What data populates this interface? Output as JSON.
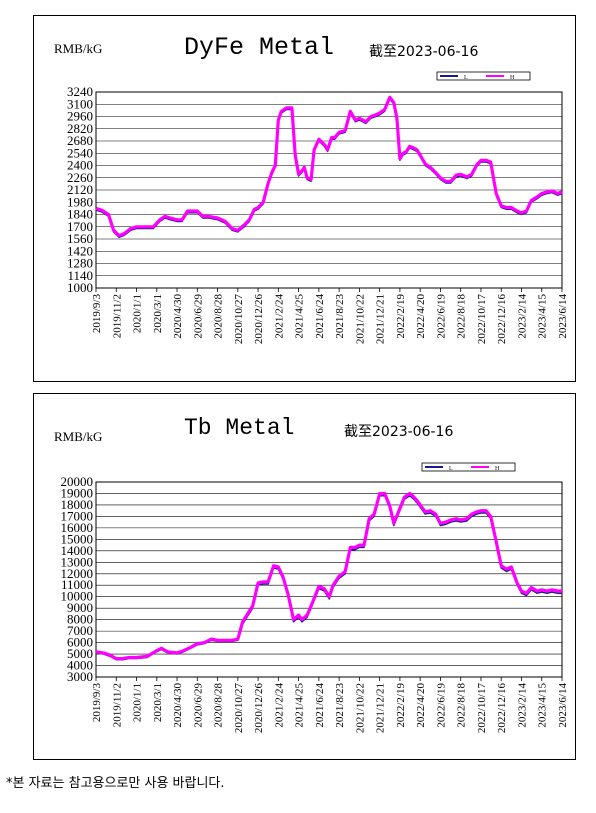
{
  "footnote": "*본 자료는 참고용으로만 사용 바랍니다.",
  "charts": [
    {
      "unit_label": "RMB/kG",
      "title": "DyFe Metal",
      "date_note": "截至2023-06-16",
      "legend": [
        "L",
        "H"
      ],
      "colors": {
        "L": "#1a1a8c",
        "H": "#ff00ff"
      },
      "chart_data": {
        "type": "line",
        "title": "DyFe Metal",
        "ylabel": "RMB/kG",
        "ylim": [
          1000,
          3240
        ],
        "yticks": [
          1000,
          1140,
          1280,
          1420,
          1560,
          1700,
          1840,
          1980,
          2120,
          2260,
          2400,
          2540,
          2680,
          2820,
          2960,
          3100,
          3240
        ],
        "ytick_labels": [
          "1000",
          "1140",
          "1280",
          "1420",
          "1560",
          "1700",
          "1840",
          "1980",
          "2120",
          "2260",
          "2400",
          "2540",
          "2680",
          "2820",
          "2960",
          "3100",
          "3240"
        ],
        "xticks": [
          "2019/9/3",
          "2019/11/2",
          "2020/1/1",
          "2020/3/1",
          "2020/4/30",
          "2020/6/29",
          "2020/8/28",
          "2020/10/27",
          "2020/12/26",
          "2021/2/24",
          "2021/4/25",
          "2021/6/24",
          "2021/8/23",
          "2021/10/22",
          "2021/12/21",
          "2022/2/19",
          "2022/4/20",
          "2022/6/19",
          "2022/8/18",
          "2022/10/17",
          "2022/12/16",
          "2023/2/14",
          "2023/4/15",
          "2023/6/14"
        ],
        "x": [
          "2019/9/3",
          "2019/9/20",
          "2019/10/10",
          "2019/10/25",
          "2019/11/10",
          "2019/11/25",
          "2019/12/15",
          "2020/1/1",
          "2020/2/1",
          "2020/2/20",
          "2020/3/10",
          "2020/3/25",
          "2020/4/10",
          "2020/4/30",
          "2020/5/15",
          "2020/5/31",
          "2020/6/15",
          "2020/6/29",
          "2020/7/15",
          "2020/8/1",
          "2020/8/28",
          "2020/9/20",
          "2020/10/10",
          "2020/10/27",
          "2020/11/15",
          "2020/11/30",
          "2020/12/15",
          "2020/12/26",
          "2021/1/10",
          "2021/1/25",
          "2021/2/5",
          "2021/2/15",
          "2021/2/24",
          "2021/3/5",
          "2021/3/20",
          "2021/4/5",
          "2021/4/15",
          "2021/4/25",
          "2021/5/5",
          "2021/5/12",
          "2021/5/20",
          "2021/6/1",
          "2021/6/10",
          "2021/6/24",
          "2021/7/10",
          "2021/7/20",
          "2021/8/1",
          "2021/8/10",
          "2021/8/23",
          "2021/9/10",
          "2021/9/25",
          "2021/10/10",
          "2021/10/22",
          "2021/11/1",
          "2021/11/10",
          "2021/11/25",
          "2021/12/10",
          "2021/12/21",
          "2022/1/5",
          "2022/1/20",
          "2022/2/1",
          "2022/2/10",
          "2022/2/19",
          "2022/3/1",
          "2022/3/10",
          "2022/3/20",
          "2022/4/1",
          "2022/4/10",
          "2022/4/20",
          "2022/5/5",
          "2022/5/20",
          "2022/6/5",
          "2022/6/19",
          "2022/7/5",
          "2022/7/20",
          "2022/8/5",
          "2022/8/18",
          "2022/9/5",
          "2022/9/20",
          "2022/10/5",
          "2022/10/17",
          "2022/11/1",
          "2022/11/15",
          "2022/12/1",
          "2022/12/16",
          "2023/1/1",
          "2023/1/15",
          "2023/2/1",
          "2023/2/14",
          "2023/3/1",
          "2023/3/15",
          "2023/4/1",
          "2023/4/15",
          "2023/5/1",
          "2023/5/15",
          "2023/6/1",
          "2023/6/14"
        ],
        "series": [
          {
            "name": "L",
            "values": [
              1890,
              1870,
              1820,
              1640,
              1580,
              1600,
              1660,
              1680,
              1680,
              1680,
              1760,
              1800,
              1780,
              1760,
              1760,
              1860,
              1860,
              1860,
              1800,
              1800,
              1780,
              1740,
              1660,
              1640,
              1700,
              1760,
              1880,
              1900,
              1960,
              2180,
              2300,
              2380,
              2900,
              3000,
              3040,
              3040,
              2500,
              2280,
              2320,
              2360,
              2240,
              2220,
              2560,
              2680,
              2620,
              2560,
              2700,
              2700,
              2760,
              2780,
              3000,
              2900,
              2920,
              2900,
              2880,
              2940,
              2960,
              2980,
              3020,
              3160,
              3100,
              2920,
              2460,
              2520,
              2540,
              2600,
              2580,
              2560,
              2500,
              2400,
              2360,
              2300,
              2240,
              2200,
              2200,
              2270,
              2280,
              2250,
              2280,
              2390,
              2440,
              2440,
              2420,
              2060,
              1920,
              1900,
              1900,
              1860,
              1840,
              1860,
              1980,
              2020,
              2060,
              2080,
              2090,
              2060,
              2080
            ]
          },
          {
            "name": "H",
            "values": [
              1910,
              1890,
              1840,
              1660,
              1600,
              1620,
              1680,
              1700,
              1700,
              1700,
              1780,
              1820,
              1800,
              1780,
              1780,
              1880,
              1880,
              1880,
              1820,
              1820,
              1800,
              1760,
              1680,
              1660,
              1720,
              1780,
              1900,
              1920,
              1980,
              2200,
              2320,
              2400,
              2920,
              3020,
              3060,
              3060,
              2520,
              2300,
              2340,
              2380,
              2260,
              2240,
              2580,
              2700,
              2640,
              2580,
              2720,
              2720,
              2780,
              2800,
              3020,
              2920,
              2940,
              2920,
              2900,
              2960,
              2980,
              3000,
              3040,
              3180,
              3120,
              2940,
              2480,
              2540,
              2560,
              2620,
              2600,
              2580,
              2520,
              2420,
              2380,
              2320,
              2260,
              2220,
              2220,
              2290,
              2300,
              2270,
              2300,
              2410,
              2460,
              2460,
              2440,
              2080,
              1940,
              1920,
              1920,
              1880,
              1860,
              1880,
              2000,
              2040,
              2080,
              2100,
              2110,
              2080,
              2100
            ]
          }
        ]
      }
    },
    {
      "unit_label": "RMB/kG",
      "title": "Tb Metal",
      "date_note": "截至2023-06-16",
      "legend": [
        "L",
        "H"
      ],
      "colors": {
        "L": "#1a1a8c",
        "H": "#ff00ff"
      },
      "chart_data": {
        "type": "line",
        "title": "Tb Metal",
        "ylabel": "RMB/kG",
        "ylim": [
          3000,
          20000
        ],
        "yticks": [
          3000,
          4000,
          5000,
          6000,
          7000,
          8000,
          9000,
          10000,
          11000,
          12000,
          13000,
          14000,
          15000,
          16000,
          17000,
          18000,
          19000,
          20000
        ],
        "ytick_labels": [
          "3000",
          "4000",
          "5000",
          "6000",
          "7000",
          "8000",
          "9000",
          "10000",
          "11000",
          "12000",
          "13000",
          "14000",
          "15000",
          "16000",
          "17000",
          "18000",
          "19000",
          "20000"
        ],
        "xticks": [
          "2019/9/3",
          "2019/11/2",
          "2020/1/1",
          "2020/3/1",
          "2020/4/30",
          "2020/6/29",
          "2020/8/28",
          "2020/10/27",
          "2020/12/26",
          "2021/2/24",
          "2021/4/25",
          "2021/6/24",
          "2021/8/23",
          "2021/10/22",
          "2021/12/21",
          "2022/2/19",
          "2022/4/20",
          "2022/6/19",
          "2022/8/18",
          "2022/10/17",
          "2022/12/16",
          "2023/2/14",
          "2023/4/15",
          "2023/6/14"
        ],
        "x": [
          "2019/9/3",
          "2019/9/25",
          "2019/10/15",
          "2019/11/2",
          "2019/11/20",
          "2019/12/10",
          "2020/1/1",
          "2020/2/1",
          "2020/3/1",
          "2020/3/15",
          "2020/4/1",
          "2020/4/30",
          "2020/5/20",
          "2020/6/10",
          "2020/6/29",
          "2020/7/20",
          "2020/8/10",
          "2020/8/28",
          "2020/9/20",
          "2020/10/10",
          "2020/10/27",
          "2020/11/10",
          "2020/11/25",
          "2020/12/10",
          "2020/12/26",
          "2021/1/10",
          "2021/1/25",
          "2021/2/10",
          "2021/2/24",
          "2021/3/10",
          "2021/3/25",
          "2021/4/10",
          "2021/4/25",
          "2021/5/5",
          "2021/5/20",
          "2021/6/1",
          "2021/6/24",
          "2021/7/10",
          "2021/7/25",
          "2021/8/5",
          "2021/8/23",
          "2021/9/10",
          "2021/9/25",
          "2021/10/10",
          "2021/10/22",
          "2021/11/5",
          "2021/11/20",
          "2021/12/5",
          "2021/12/21",
          "2022/1/5",
          "2022/1/20",
          "2022/2/1",
          "2022/2/19",
          "2022/3/5",
          "2022/3/20",
          "2022/4/1",
          "2022/4/10",
          "2022/4/20",
          "2022/5/5",
          "2022/5/20",
          "2022/6/5",
          "2022/6/19",
          "2022/7/5",
          "2022/7/20",
          "2022/8/5",
          "2022/8/18",
          "2022/9/5",
          "2022/9/20",
          "2022/10/5",
          "2022/10/17",
          "2022/11/1",
          "2022/11/15",
          "2022/12/1",
          "2022/12/16",
          "2023/1/1",
          "2023/1/15",
          "2023/2/1",
          "2023/2/14",
          "2023/3/1",
          "2023/3/15",
          "2023/4/1",
          "2023/4/15",
          "2023/5/1",
          "2023/5/15",
          "2023/6/1",
          "2023/6/14"
        ],
        "series": [
          {
            "name": "L",
            "values": [
              5100,
              5000,
              4800,
              4500,
              4500,
              4600,
              4600,
              4700,
              5200,
              5400,
              5100,
              5000,
              5200,
              5500,
              5800,
              5900,
              6200,
              6100,
              6100,
              6100,
              6200,
              7600,
              8300,
              9000,
              11000,
              11100,
              11100,
              12500,
              12400,
              11500,
              10000,
              7800,
              8200,
              7800,
              8200,
              9000,
              10700,
              10500,
              9800,
              10800,
              11600,
              12000,
              14100,
              14100,
              14300,
              14300,
              16600,
              17000,
              18800,
              18800,
              17700,
              16200,
              17500,
              18500,
              18800,
              18500,
              18200,
              17800,
              17200,
              17300,
              17000,
              16200,
              16300,
              16500,
              16600,
              16500,
              16600,
              17000,
              17200,
              17300,
              17300,
              16800,
              14600,
              12500,
              12200,
              12400,
              11000,
              10300,
              10100,
              10600,
              10300,
              10400,
              10300,
              10400,
              10300,
              10300
            ]
          },
          {
            "name": "H",
            "values": [
              5200,
              5100,
              4900,
              4600,
              4600,
              4700,
              4700,
              4800,
              5300,
              5500,
              5200,
              5100,
              5300,
              5600,
              5900,
              6000,
              6300,
              6200,
              6200,
              6200,
              6300,
              7800,
              8500,
              9200,
              11200,
              11300,
              11300,
              12700,
              12600,
              11700,
              10200,
              8000,
              8400,
              8000,
              8400,
              9200,
              10900,
              10700,
              10000,
              11000,
              11800,
              12200,
              14300,
              14300,
              14500,
              14500,
              16800,
              17200,
              19000,
              19000,
              17900,
              16400,
              17700,
              18700,
              19000,
              18700,
              18400,
              18000,
              17400,
              17500,
              17200,
              16400,
              16500,
              16700,
              16800,
              16700,
              16800,
              17200,
              17400,
              17500,
              17500,
              17000,
              14800,
              12700,
              12400,
              12600,
              11200,
              10500,
              10300,
              10800,
              10500,
              10600,
              10500,
              10600,
              10500,
              10500
            ]
          }
        ]
      }
    }
  ]
}
